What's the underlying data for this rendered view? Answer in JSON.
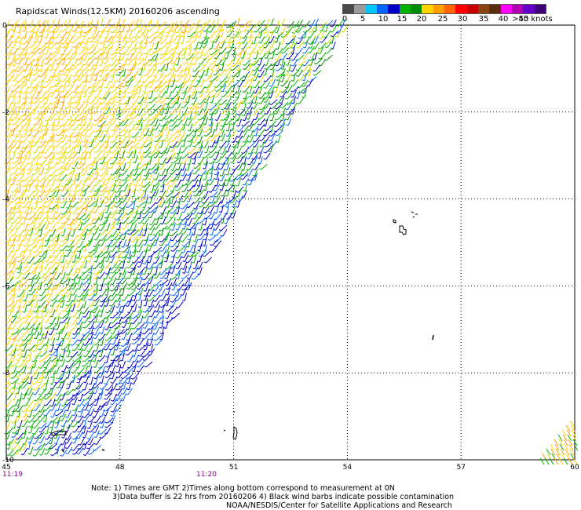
{
  "title": "Rapidscat Winds(12.5KM) 20160206 ascending",
  "legend": {
    "colors": [
      "#4a4a4a",
      "#9a9a9a",
      "#00c8ff",
      "#0064ff",
      "#0000c8",
      "#00b400",
      "#008c00",
      "#ffd200",
      "#ffa000",
      "#ff6400",
      "#ff0000",
      "#c80000",
      "#8b4513",
      "#5a2d0c",
      "#ff00ff",
      "#b400b4",
      "#6400c8",
      "#3c0078"
    ],
    "labels": [
      "0",
      "5",
      "10",
      "15",
      "20",
      "25",
      "30",
      "35",
      "40",
      "45",
      ">50 knots"
    ]
  },
  "axes": {
    "x_ticks": [
      "45",
      "48",
      "51",
      "54",
      "57",
      "60"
    ],
    "y_ticks": [
      "0",
      "-2",
      "-4",
      "-6",
      "-8",
      "-10"
    ],
    "x_range": [
      45,
      60
    ],
    "y_range": [
      -10,
      0
    ]
  },
  "times": [
    "11:19",
    "11:20"
  ],
  "notes": [
    "Note: 1) Times are GMT 2)Times along bottom correspond to measurement at 0N",
    "3)Data buffer is 22 hrs from 20160206 4) Black wind barbs indicate possible contamination",
    "NOAA/NESDIS/Center for Satellite Applications and Research"
  ]
}
